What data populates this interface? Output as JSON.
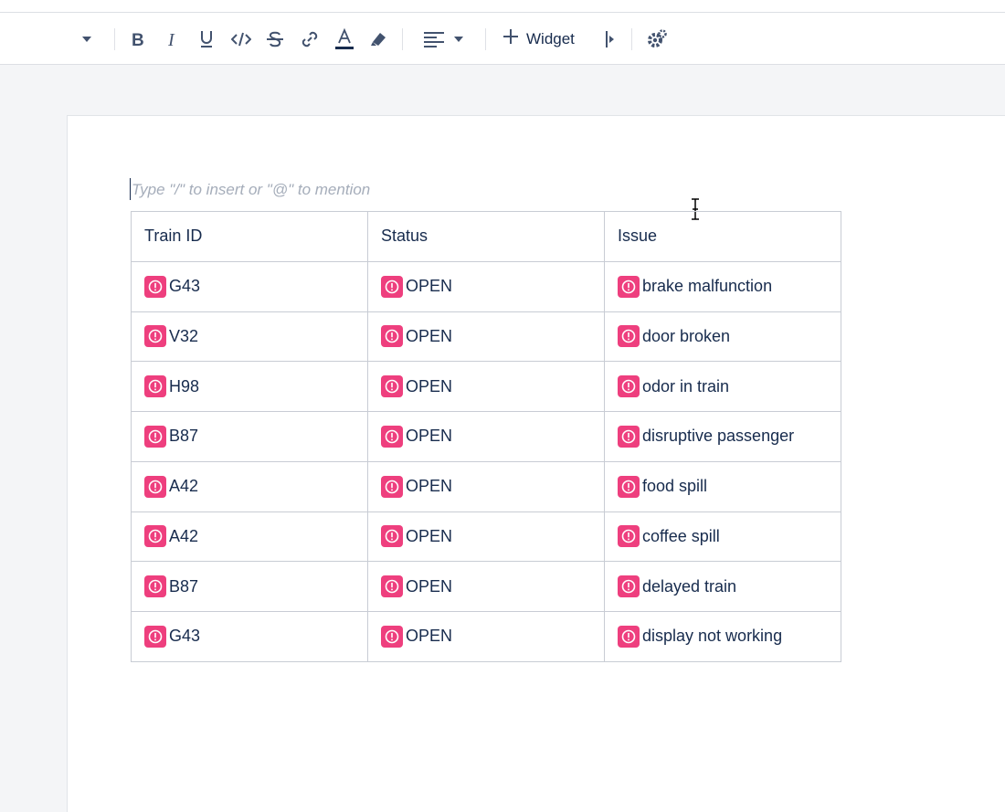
{
  "toolbar": {
    "widget_label": "Widget",
    "icons": [
      "chevron-down-icon",
      "bold-icon",
      "italic-icon",
      "underline-icon",
      "code-icon",
      "strikethrough-icon",
      "link-icon",
      "text-color-icon",
      "highlight-icon",
      "align-left-icon",
      "align-dropdown-icon",
      "plus-icon",
      "insert-right-icon",
      "settings-icon"
    ]
  },
  "editor": {
    "placeholder": "Type \"/\" to insert or \"@\" to mention"
  },
  "table": {
    "headers": [
      "Train ID",
      "Status",
      "Issue"
    ],
    "rows": [
      {
        "train_id": "G43",
        "status": "OPEN",
        "issue": "brake malfunction"
      },
      {
        "train_id": "V32",
        "status": "OPEN",
        "issue": "door broken"
      },
      {
        "train_id": "H98",
        "status": "OPEN",
        "issue": "odor in train"
      },
      {
        "train_id": "B87",
        "status": "OPEN",
        "issue": "disruptive passenger"
      },
      {
        "train_id": "A42",
        "status": "OPEN",
        "issue": "food spill"
      },
      {
        "train_id": "A42",
        "status": "OPEN",
        "issue": "coffee spill"
      },
      {
        "train_id": "B87",
        "status": "OPEN",
        "issue": "delayed train"
      },
      {
        "train_id": "G43",
        "status": "OPEN",
        "issue": "display not working"
      }
    ],
    "badge_icon": "alert-circle-icon",
    "badge_color": "#ee3f7e"
  }
}
